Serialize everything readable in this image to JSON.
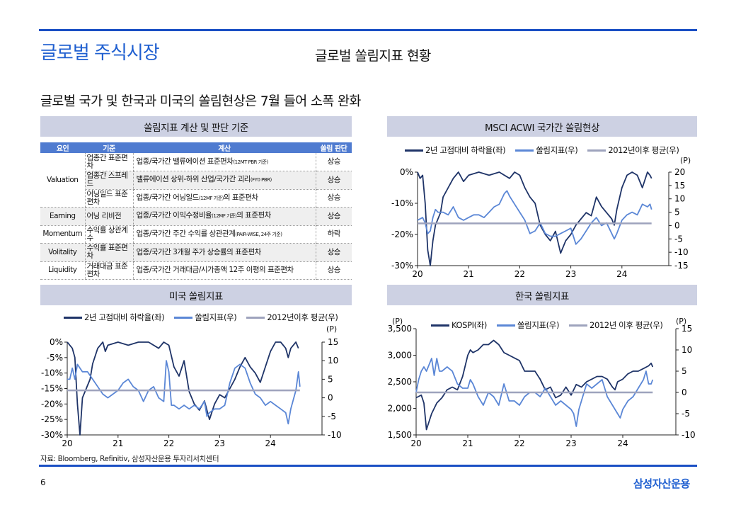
{
  "header": {
    "title": "글로벌 주식시장",
    "subtitle": "글로벌 쏠림지표 현황",
    "headline": "글로벌 국가 및 한국과 미국의 쏠림현상은 7월 들어 소폭 완화"
  },
  "sections": {
    "table": "쏠림지표 계산 및 판단 기준",
    "msci": "MSCI ACWI 국가간 쏠림현상",
    "us": "미국 쏠림지표",
    "korea": "한국 쏠림지표"
  },
  "table": {
    "headers": [
      "요인",
      "기준",
      "계산",
      "쏠림 판단"
    ],
    "rows": [
      {
        "factor": "Valuation",
        "criterion": "업종간 표준편차",
        "calc": "업종/국가간 밸류에이션 표준편차",
        "note": "(12MT PBR 기준)",
        "result": "상승"
      },
      {
        "factor": "",
        "criterion": "업종간 스프레드",
        "calc": "밸류에이션 상위-하위 산업/국가간 괴리",
        "note": "(FY0 PBR)",
        "result": "상승"
      },
      {
        "factor": "",
        "criterion": "어닝일드 표준편차",
        "calc": "업종/국가간 어닝일드",
        "note": "(12MF 기준)",
        "calc2": "의 표준편차",
        "result": "상승"
      },
      {
        "factor": "Earning",
        "criterion": "어닝 리비전",
        "calc": "업종/국가간 이익수정비율",
        "note": "(12MF 기준)",
        "calc2": "의 표준편차",
        "result": "상승"
      },
      {
        "factor": "Momentum",
        "criterion": "수익률 상관계수",
        "calc": "업종/국가간 주간 수익률 상관관계",
        "note": "(PAIR-WISE, 24주 기준)",
        "result": "하락"
      },
      {
        "factor": "Volitality",
        "criterion": "수익률 표준편차",
        "calc": "업종/국가간 3개월 주가 상승률의 표준편차",
        "result": "상승"
      },
      {
        "factor": "Liquidity",
        "criterion": "거래대금 표준편차",
        "calc": "업종/국가간 거래대금/시가총액 12주 이평의 표준편차",
        "result": "상승"
      }
    ]
  },
  "colors": {
    "dark": "#1f3468",
    "light": "#5b87d6",
    "avg": "#9ea3bd",
    "accent": "#1a4fc4"
  },
  "chart_data": [
    {
      "id": "msci",
      "type": "line",
      "title": "MSCI ACWI 국가간 쏠림현상",
      "legend": [
        "2년 고점대비 하락율(좌)",
        "쏠림지표(우)",
        "2012년이후 평균(우)"
      ],
      "right_unit": "(P)",
      "xticks": [
        "20",
        "21",
        "22",
        "23",
        "24"
      ],
      "xlim": [
        2020,
        2025
      ],
      "yleft": {
        "lim": [
          -30,
          0
        ],
        "ticks": [
          "0%",
          "-10%",
          "-20%",
          "-30%"
        ],
        "values": [
          0,
          -10,
          -20,
          -30
        ]
      },
      "yright": {
        "lim": [
          -15,
          20
        ],
        "ticks": [
          "20",
          "15",
          "10",
          "5",
          "0",
          "-5",
          "-10",
          "-15"
        ],
        "values": [
          20,
          15,
          10,
          5,
          0,
          -5,
          -10,
          -15
        ]
      },
      "series": [
        {
          "name": "2년 고점대비 하락율(좌)",
          "axis": "left",
          "color": "dark",
          "x": [
            2020,
            2020.05,
            2020.1,
            2020.15,
            2020.2,
            2020.25,
            2020.3,
            2020.35,
            2020.45,
            2020.5,
            2020.6,
            2020.7,
            2020.8,
            2020.9,
            2021,
            2021.2,
            2021.4,
            2021.6,
            2021.8,
            2021.9,
            2022,
            2022.1,
            2022.2,
            2022.3,
            2022.4,
            2022.5,
            2022.6,
            2022.7,
            2022.8,
            2022.9,
            2023,
            2023.1,
            2023.2,
            2023.3,
            2023.4,
            2023.5,
            2023.6,
            2023.7,
            2023.8,
            2023.85,
            2023.9,
            2024,
            2024.1,
            2024.2,
            2024.3,
            2024.4,
            2024.5,
            2024.55,
            2024.58
          ],
          "y": [
            0,
            -2,
            -1,
            -10,
            -25,
            -30,
            -22,
            -17,
            -13,
            -8,
            -5,
            -2,
            0,
            -3,
            -1,
            0,
            -1,
            0,
            -2,
            0,
            -1,
            -5,
            -8,
            -10,
            -17,
            -20,
            -22,
            -19,
            -26,
            -22,
            -20,
            -17,
            -15,
            -13,
            -14,
            -8,
            -11,
            -13,
            -15,
            -17,
            -12,
            -5,
            -1,
            0,
            -1,
            -5,
            0,
            -1,
            -2
          ]
        },
        {
          "name": "쏠림지표(우)",
          "axis": "right",
          "color": "light",
          "x": [
            2020,
            2020.1,
            2020.15,
            2020.2,
            2020.25,
            2020.3,
            2020.35,
            2020.4,
            2020.5,
            2020.6,
            2020.7,
            2020.8,
            2020.9,
            2021,
            2021.1,
            2021.2,
            2021.3,
            2021.4,
            2021.5,
            2021.6,
            2021.7,
            2021.75,
            2021.8,
            2021.9,
            2022,
            2022.1,
            2022.2,
            2022.3,
            2022.4,
            2022.5,
            2022.6,
            2022.7,
            2022.8,
            2022.9,
            2023,
            2023.1,
            2023.2,
            2023.3,
            2023.4,
            2023.5,
            2023.6,
            2023.7,
            2023.8,
            2023.85,
            2023.9,
            2024,
            2024.1,
            2024.2,
            2024.3,
            2024.4,
            2024.5,
            2024.55,
            2024.58
          ],
          "y": [
            2,
            3,
            1,
            -3,
            -2,
            3,
            6,
            5,
            5,
            4,
            7,
            3,
            2,
            3,
            4,
            4,
            3,
            5,
            7,
            8,
            12,
            13,
            11,
            8,
            5,
            2,
            -3,
            -2,
            1,
            -3,
            -4,
            -4,
            -3,
            -2,
            -1,
            -7,
            -5,
            -2,
            1,
            3,
            0,
            1,
            -3,
            -5,
            -3,
            2,
            4,
            5,
            4,
            8,
            7,
            8,
            6
          ]
        },
        {
          "name": "2012년이후 평균(우)",
          "axis": "right",
          "color": "avg",
          "x": [
            2020,
            2024.58
          ],
          "y": [
            0.8,
            0.8
          ]
        }
      ]
    },
    {
      "id": "us",
      "type": "line",
      "title": "미국 쏠림지표",
      "legend": [
        "2년 고점대비 하락율(좌)",
        "쏠림지표(우)",
        "2012년이후 평균(우)"
      ],
      "right_unit": "(P)",
      "xticks": [
        "20",
        "21",
        "22",
        "23",
        "24"
      ],
      "xlim": [
        2020,
        2025
      ],
      "yleft": {
        "lim": [
          -30,
          0
        ],
        "ticks": [
          "0%",
          "-5%",
          "-10%",
          "-15%",
          "-20%",
          "-25%",
          "-30%"
        ],
        "values": [
          0,
          -5,
          -10,
          -15,
          -20,
          -25,
          -30
        ]
      },
      "yright": {
        "lim": [
          -10,
          15
        ],
        "ticks": [
          "15",
          "10",
          "5",
          "0",
          "-5",
          "-10"
        ],
        "values": [
          15,
          10,
          5,
          0,
          -5,
          -10
        ]
      },
      "series": [
        {
          "name": "2년 고점대비 하락율(좌)",
          "axis": "left",
          "color": "dark",
          "x": [
            2020,
            2020.1,
            2020.15,
            2020.2,
            2020.25,
            2020.3,
            2020.35,
            2020.45,
            2020.5,
            2020.6,
            2020.7,
            2020.75,
            2020.8,
            2021,
            2021.2,
            2021.4,
            2021.6,
            2021.8,
            2021.9,
            2022,
            2022.1,
            2022.2,
            2022.3,
            2022.4,
            2022.5,
            2022.6,
            2022.7,
            2022.8,
            2022.9,
            2023,
            2023.1,
            2023.2,
            2023.3,
            2023.4,
            2023.5,
            2023.6,
            2023.7,
            2023.8,
            2023.9,
            2024,
            2024.1,
            2024.2,
            2024.3,
            2024.35,
            2024.4,
            2024.5,
            2024.55
          ],
          "y": [
            0,
            -2,
            -5,
            -20,
            -30,
            -18,
            -16,
            -12,
            -7,
            -2,
            0,
            -3,
            -1,
            0,
            -1,
            0,
            0,
            -2,
            0,
            -1,
            -8,
            -11,
            -6,
            -16,
            -20,
            -22,
            -19,
            -25,
            -20,
            -17,
            -18,
            -15,
            -12,
            -8,
            -5,
            -8,
            -10,
            -13,
            -8,
            -3,
            0,
            0,
            -2,
            -5,
            -2,
            0,
            -2
          ]
        },
        {
          "name": "쏠림지표(우)",
          "axis": "right",
          "color": "light",
          "x": [
            2020,
            2020.05,
            2020.1,
            2020.15,
            2020.2,
            2020.3,
            2020.4,
            2020.5,
            2020.6,
            2020.7,
            2020.8,
            2020.9,
            2021,
            2021.1,
            2021.2,
            2021.3,
            2021.4,
            2021.5,
            2021.6,
            2021.7,
            2021.8,
            2021.9,
            2021.95,
            2022,
            2022.05,
            2022.1,
            2022.2,
            2022.3,
            2022.4,
            2022.5,
            2022.6,
            2022.7,
            2022.75,
            2022.8,
            2022.9,
            2023,
            2023.1,
            2023.2,
            2023.3,
            2023.4,
            2023.5,
            2023.6,
            2023.7,
            2023.8,
            2023.9,
            2024,
            2024.1,
            2024.2,
            2024.3,
            2024.35,
            2024.4,
            2024.5,
            2024.55,
            2024.58
          ],
          "y": [
            5,
            5,
            8,
            5,
            9,
            7,
            7,
            5,
            3,
            1,
            0,
            1,
            2,
            4,
            5,
            3,
            2,
            -1,
            2,
            3,
            0,
            -1,
            10,
            7,
            -2,
            -2,
            -3,
            -2,
            -3,
            -2,
            -3,
            -1,
            -5,
            -4,
            -3,
            -3,
            -2,
            4,
            8,
            9,
            8,
            4,
            1,
            0,
            -2,
            -1,
            -2,
            -3,
            -4,
            -7,
            -3,
            2,
            7,
            3
          ]
        },
        {
          "name": "2012년이후 평균(우)",
          "axis": "right",
          "color": "avg",
          "x": [
            2020,
            2024.58
          ],
          "y": [
            2,
            2
          ]
        }
      ]
    },
    {
      "id": "korea",
      "type": "line",
      "title": "한국 쏠림지표",
      "legend": [
        "KOSPI(좌)",
        "쏠림지표(우)",
        "2012년 이후 평균(우)"
      ],
      "left_unit": "(P)",
      "right_unit": "(P)",
      "xticks": [
        "20",
        "21",
        "22",
        "23",
        "24"
      ],
      "xlim": [
        2020,
        2025
      ],
      "yleft": {
        "lim": [
          1500,
          3500
        ],
        "ticks": [
          "3,500",
          "3,000",
          "2,500",
          "2,000",
          "1,500"
        ],
        "values": [
          3500,
          3000,
          2500,
          2000,
          1500
        ]
      },
      "yright": {
        "lim": [
          -10,
          15
        ],
        "ticks": [
          "15",
          "10",
          "5",
          "0",
          "-5",
          "-10"
        ],
        "values": [
          15,
          10,
          5,
          0,
          -5,
          -10
        ]
      },
      "series": [
        {
          "name": "KOSPI(좌)",
          "axis": "left",
          "color": "dark",
          "x": [
            2020,
            2020.1,
            2020.15,
            2020.2,
            2020.3,
            2020.4,
            2020.5,
            2020.6,
            2020.7,
            2020.8,
            2020.9,
            2021,
            2021.05,
            2021.1,
            2021.2,
            2021.3,
            2021.4,
            2021.5,
            2021.6,
            2021.7,
            2021.8,
            2021.9,
            2022,
            2022.1,
            2022.2,
            2022.3,
            2022.4,
            2022.5,
            2022.6,
            2022.7,
            2022.8,
            2022.9,
            2023,
            2023.1,
            2023.2,
            2023.3,
            2023.4,
            2023.5,
            2023.6,
            2023.7,
            2023.8,
            2023.85,
            2023.9,
            2024,
            2024.1,
            2024.2,
            2024.3,
            2024.4,
            2024.5,
            2024.55,
            2024.58
          ],
          "y": [
            2200,
            2250,
            2100,
            1600,
            1900,
            2100,
            2200,
            2350,
            2400,
            2350,
            2600,
            3000,
            3100,
            3050,
            3100,
            3200,
            3200,
            3280,
            3200,
            3050,
            3000,
            2950,
            2900,
            2700,
            2700,
            2700,
            2550,
            2350,
            2400,
            2200,
            2250,
            2400,
            2250,
            2450,
            2400,
            2500,
            2550,
            2600,
            2600,
            2550,
            2400,
            2350,
            2500,
            2550,
            2650,
            2700,
            2700,
            2750,
            2800,
            2850,
            2780
          ]
        },
        {
          "name": "쏠림지표(우)",
          "axis": "right",
          "color": "light",
          "x": [
            2020,
            2020.05,
            2020.1,
            2020.15,
            2020.2,
            2020.3,
            2020.35,
            2020.4,
            2020.45,
            2020.5,
            2020.6,
            2020.7,
            2020.8,
            2020.9,
            2021,
            2021.05,
            2021.1,
            2021.2,
            2021.3,
            2021.4,
            2021.5,
            2021.6,
            2021.7,
            2021.8,
            2021.9,
            2022,
            2022.1,
            2022.2,
            2022.3,
            2022.4,
            2022.5,
            2022.6,
            2022.7,
            2022.8,
            2022.9,
            2023,
            2023.05,
            2023.1,
            2023.15,
            2023.2,
            2023.3,
            2023.4,
            2023.5,
            2023.6,
            2023.7,
            2023.8,
            2023.9,
            2023.95,
            2024,
            2024.1,
            2024.2,
            2024.3,
            2024.4,
            2024.45,
            2024.5,
            2024.55,
            2024.58
          ],
          "y": [
            0,
            3,
            5,
            6,
            5,
            8,
            4,
            8,
            5,
            5,
            6,
            5,
            2,
            1,
            1,
            3,
            2,
            -1,
            -3,
            0,
            -1,
            -3,
            2,
            -2,
            -2,
            -3,
            -1,
            0,
            0,
            -1,
            1,
            -1,
            -3,
            -2,
            -3,
            -4,
            -5,
            -8,
            -4,
            -2,
            2,
            1,
            2,
            3,
            -1,
            -3,
            -5,
            -6,
            -4,
            -2,
            -1,
            1,
            3,
            5,
            2,
            2,
            3
          ]
        },
        {
          "name": "2012년 이후 평균(우)",
          "axis": "right",
          "color": "avg",
          "x": [
            2020,
            2024.58
          ],
          "y": [
            0,
            0
          ]
        }
      ]
    }
  ],
  "footer": {
    "source": "자료: Bloomberg, Refinitiv, 삼성자산운용 투자리서치센터",
    "page": "6",
    "logo": "삼성자산운용"
  }
}
